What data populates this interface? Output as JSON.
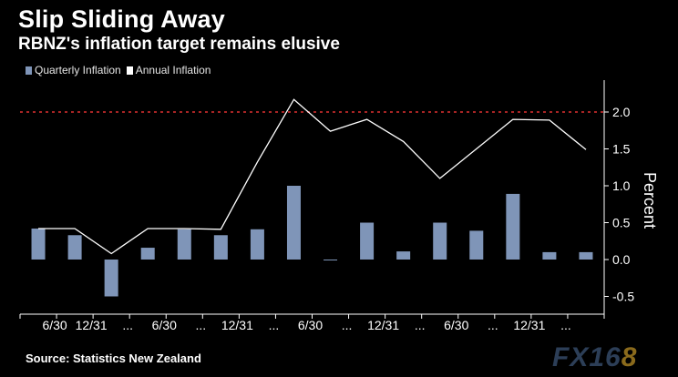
{
  "title": "Slip Sliding Away",
  "subtitle": "RBNZ's inflation target remains elusive",
  "source": "Source:  Statistics New Zealand",
  "logo": {
    "main": "FX16",
    "accent": "8"
  },
  "colors": {
    "bar": "#7f95b8",
    "line": "#ffffff",
    "target": "#e03030",
    "background": "#000000"
  },
  "chart_data": {
    "type": "bar",
    "title": "Slip Sliding Away",
    "subtitle": "RBNZ's inflation target remains elusive",
    "ylabel": "Percent",
    "xlabel": "",
    "ylim": [
      -0.75,
      2.4
    ],
    "yticks": [
      -0.5,
      0.0,
      0.5,
      1.0,
      1.5,
      2.0
    ],
    "ytick_labels": [
      "-0.5",
      "0.0",
      "0.5",
      "1.0",
      "1.5",
      "2.0"
    ],
    "y_axis_position": "right",
    "x_tick_labels": [
      "6/30",
      "12/31",
      "...",
      "6/30",
      "...",
      "12/31",
      "...",
      "6/30",
      "...",
      "12/31",
      "...",
      "6/30",
      "...",
      "12/31",
      "..."
    ],
    "legend": [
      {
        "name": "Quarterly Inflation",
        "marker": "bar"
      },
      {
        "name": "Annual Inflation",
        "marker": "line"
      }
    ],
    "target_line": {
      "value": 2.0,
      "style": "dashed"
    },
    "series": [
      {
        "name": "Quarterly Inflation",
        "type": "bar",
        "values": [
          0.42,
          0.33,
          -0.5,
          0.16,
          0.41,
          0.33,
          0.41,
          1.0,
          -0.01,
          0.5,
          0.11,
          0.5,
          0.39,
          0.89,
          0.1,
          0.1
        ]
      },
      {
        "name": "Annual Inflation",
        "type": "line",
        "values": [
          0.42,
          0.42,
          0.08,
          0.42,
          0.42,
          0.41,
          1.32,
          2.17,
          1.74,
          1.9,
          1.6,
          1.1,
          1.5,
          1.9,
          1.89,
          1.49
        ]
      }
    ]
  }
}
